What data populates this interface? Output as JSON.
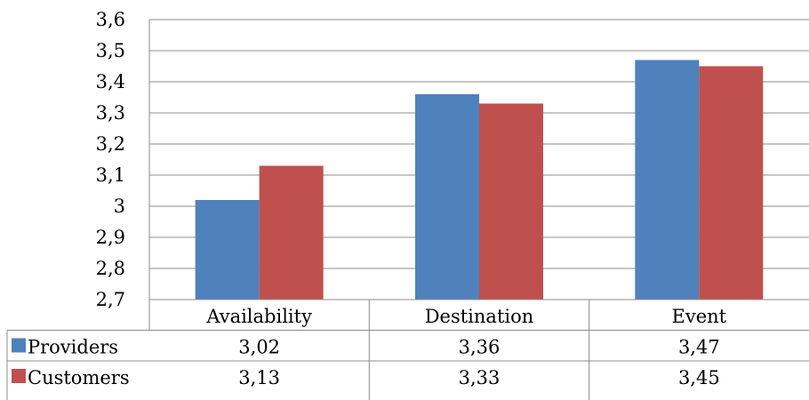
{
  "chart_data": {
    "type": "bar",
    "categories": [
      "Availability",
      "Destination",
      "Event"
    ],
    "series": [
      {
        "name": "Providers",
        "values": [
          3.02,
          3.36,
          3.47
        ],
        "labels": [
          "3,02",
          "3,36",
          "3,47"
        ],
        "color": "#4F81BD"
      },
      {
        "name": "Customers",
        "values": [
          3.13,
          3.33,
          3.45
        ],
        "labels": [
          "3,13",
          "3,33",
          "3,45"
        ],
        "color": "#C0504D"
      }
    ],
    "ylim": [
      2.7,
      3.6
    ],
    "yticks": [
      2.7,
      2.8,
      2.9,
      3.0,
      3.1,
      3.2,
      3.3,
      3.4,
      3.5,
      3.6
    ],
    "ytick_labels": [
      "2,7",
      "2,8",
      "2,9",
      "3",
      "3,1",
      "3,2",
      "3,3",
      "3,4",
      "3,5",
      "3,6"
    ],
    "grid": true,
    "data_table": true,
    "title": "",
    "xlabel": "",
    "ylabel": ""
  }
}
